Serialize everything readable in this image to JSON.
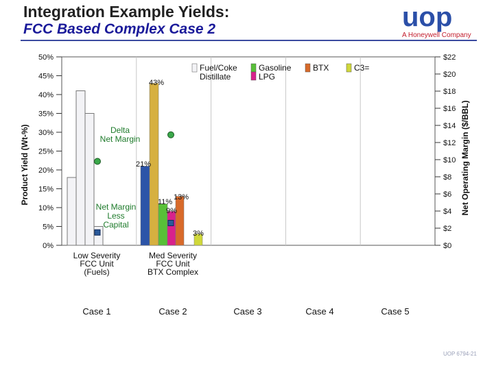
{
  "header": {
    "title_line1": "Integration Example Yields:",
    "title_line2": "FCC Based Complex Case 2",
    "logo_text": "uop",
    "logo_subtitle": "A Honeywell Company",
    "footer": "UOP 6794-21"
  },
  "colors": {
    "Fuel/Coke Distillate": "#f3f3f6",
    "Gasoline": "#d6b040",
    "LPG": "#58c038",
    "BTX": "#d86a2a",
    "C3=": "#d0d83a",
    "C3=_alt": "#d8228c",
    "delta_marker": "#3aa84a",
    "net_marker": "#2a5a9a"
  },
  "chart_data": {
    "type": "bar",
    "ylabel": "Product Yield (Wt-%)",
    "y2label": "Net Operating Margin ($/BBL)",
    "ylim": [
      0,
      50
    ],
    "y2lim": [
      0,
      22
    ],
    "y_ticks": [
      "0%",
      "5%",
      "10%",
      "15%",
      "20%",
      "25%",
      "30%",
      "35%",
      "40%",
      "45%",
      "50%"
    ],
    "y2_ticks": [
      "$0",
      "$2",
      "$4",
      "$6",
      "$8",
      "$10",
      "$12",
      "$14",
      "$16",
      "$18",
      "$20",
      "$22"
    ],
    "legend": [
      {
        "label": "Fuel/Coke Distillate",
        "color_key": "Fuel/Coke Distillate"
      },
      {
        "label": "Gasoline LPG",
        "color_key": "Gasoline"
      },
      {
        "label": "BTX",
        "color_key": "BTX"
      },
      {
        "label": "C3=",
        "color_key": "C3="
      }
    ],
    "categories": [
      "Case 1",
      "Case 2",
      "Case 3",
      "Case 4",
      "Case 5"
    ],
    "category_descriptions": [
      [
        "Low Severity",
        "FCC Unit",
        "(Fuels)"
      ],
      [
        "Med Severity",
        "FCC Unit",
        "BTX Complex"
      ],
      [],
      [],
      []
    ],
    "case1_bars": [
      {
        "label": "Fuel/Coke",
        "value": 18,
        "color_key": "Fuel/Coke Distillate"
      },
      {
        "label": "Distillate",
        "value": 41,
        "color_key": "Fuel/Coke Distillate"
      },
      {
        "label": "Gasoline",
        "value": 35,
        "color_key": "Fuel/Coke Distillate"
      },
      {
        "label": "LPG",
        "value": 5,
        "color_key": "Fuel/Coke Distillate"
      }
    ],
    "case2_bars": [
      {
        "label": "Fuel/Coke Distillate",
        "value": 21,
        "color_key": "BTX_blue",
        "text": "21%"
      },
      {
        "label": "Gasoline",
        "value": 43,
        "color_key": "Gasoline",
        "text": "43%"
      },
      {
        "label": "LPG",
        "value": 11,
        "color_key": "LPG",
        "text": "11%"
      },
      {
        "label": "LPG",
        "value": 9,
        "color_key": "C3=_alt",
        "text": "9%"
      },
      {
        "label": "BTX",
        "value": 13,
        "color_key": "BTX",
        "text": "13%"
      },
      {
        "label": "C3=",
        "value": 3,
        "color_key": "C3=",
        "text": "3%"
      }
    ],
    "markers": [
      {
        "case": "Case 1",
        "series": "Delta Net Margin",
        "value": 9.8
      },
      {
        "case": "Case 1",
        "series": "Net Margin Less Capital",
        "value": 1.5
      },
      {
        "case": "Case 2",
        "series": "Delta Net Margin",
        "value": 12.9
      },
      {
        "case": "Case 2",
        "series": "Net Margin Less Capital",
        "value": 2.6
      }
    ],
    "annotations": {
      "delta": "Delta\nNet Margin",
      "net": "Net Margin\nLess\nCapital"
    }
  }
}
